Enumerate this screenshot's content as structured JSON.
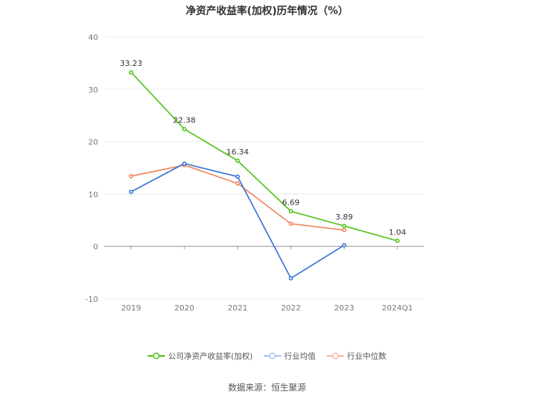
{
  "chart_data": {
    "type": "line",
    "title": "净资产收益率(加权)历年情况（%）",
    "categories": [
      "2019",
      "2020",
      "2021",
      "2022",
      "2023",
      "2024Q1"
    ],
    "ylim": [
      -10,
      40
    ],
    "yticks": [
      -10,
      0,
      10,
      20,
      30,
      40
    ],
    "grid": true,
    "legend_position": "bottom",
    "series": [
      {
        "name": "公司净资产收益率(加权)",
        "color": "#52c41a",
        "values": [
          33.23,
          22.38,
          16.34,
          6.69,
          3.89,
          1.04
        ],
        "labels": [
          "33.23",
          "22.38",
          "16.34",
          "6.69",
          "3.89",
          "1.04"
        ]
      },
      {
        "name": "行业均值",
        "color": "#3a75d6",
        "values": [
          10.4,
          15.8,
          13.3,
          -6.1,
          0.2,
          null
        ]
      },
      {
        "name": "行业中位数",
        "color": "#f0865f",
        "values": [
          13.4,
          15.5,
          12.0,
          4.3,
          3.1,
          null
        ]
      }
    ]
  },
  "footer": {
    "source": "数据来源：恒生聚源"
  }
}
